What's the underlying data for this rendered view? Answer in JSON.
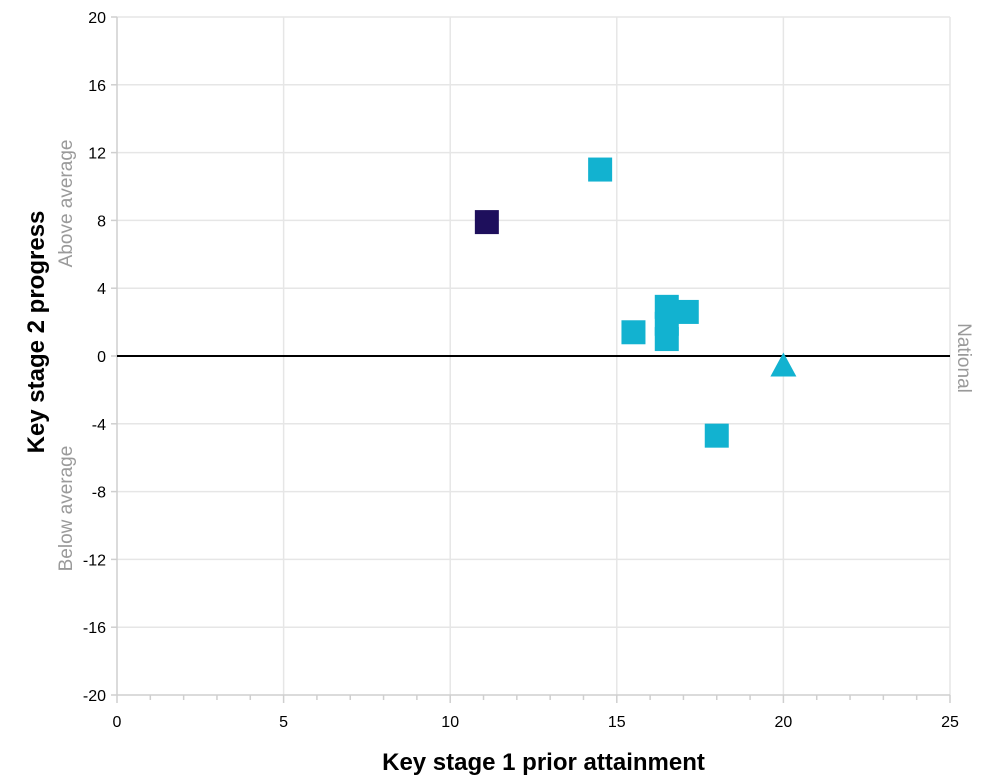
{
  "chart_data": {
    "type": "scatter",
    "xlabel": "Key stage 1 prior attainment",
    "ylabel": "Key stage 2 progress",
    "xlim": [
      0,
      25
    ],
    "ylim": [
      -20,
      20
    ],
    "x_ticks": [
      0,
      5,
      10,
      15,
      20,
      25
    ],
    "y_ticks": [
      20,
      16,
      12,
      8,
      4,
      0,
      -4,
      -8,
      -12,
      -16,
      -20
    ],
    "x_tick_labels": [
      "0",
      "5",
      "10",
      "15",
      "20",
      "25"
    ],
    "y_tick_labels": [
      "20",
      "16",
      "12",
      "8",
      "4",
      "0",
      "-4",
      "-8",
      "-12",
      "-16",
      "-20"
    ],
    "grid": true,
    "reference_line": {
      "y": 0,
      "label": "National",
      "color": "#000000"
    },
    "band_labels": {
      "above": "Above average",
      "below": "Below average"
    },
    "colors": {
      "highlight": "#1e0f5c",
      "schools": "#12b2d0",
      "national_marker": "#12b2d0",
      "grid": "#e6e6e6"
    },
    "points": [
      {
        "x": 11.1,
        "y": 7.9,
        "marker": "square",
        "color": "#1e0f5c"
      },
      {
        "x": 14.5,
        "y": 11.0,
        "marker": "square",
        "color": "#12b2d0"
      },
      {
        "x": 15.5,
        "y": 1.4,
        "marker": "square",
        "color": "#12b2d0"
      },
      {
        "x": 16.5,
        "y": 2.9,
        "marker": "square",
        "color": "#12b2d0"
      },
      {
        "x": 16.5,
        "y": 1.9,
        "marker": "square",
        "color": "#12b2d0"
      },
      {
        "x": 16.5,
        "y": 1.0,
        "marker": "square",
        "color": "#12b2d0"
      },
      {
        "x": 17.1,
        "y": 2.6,
        "marker": "square",
        "color": "#12b2d0"
      },
      {
        "x": 18.0,
        "y": -4.7,
        "marker": "square",
        "color": "#12b2d0"
      },
      {
        "x": 20.0,
        "y": -0.5,
        "marker": "triangle",
        "color": "#12b2d0"
      }
    ]
  }
}
